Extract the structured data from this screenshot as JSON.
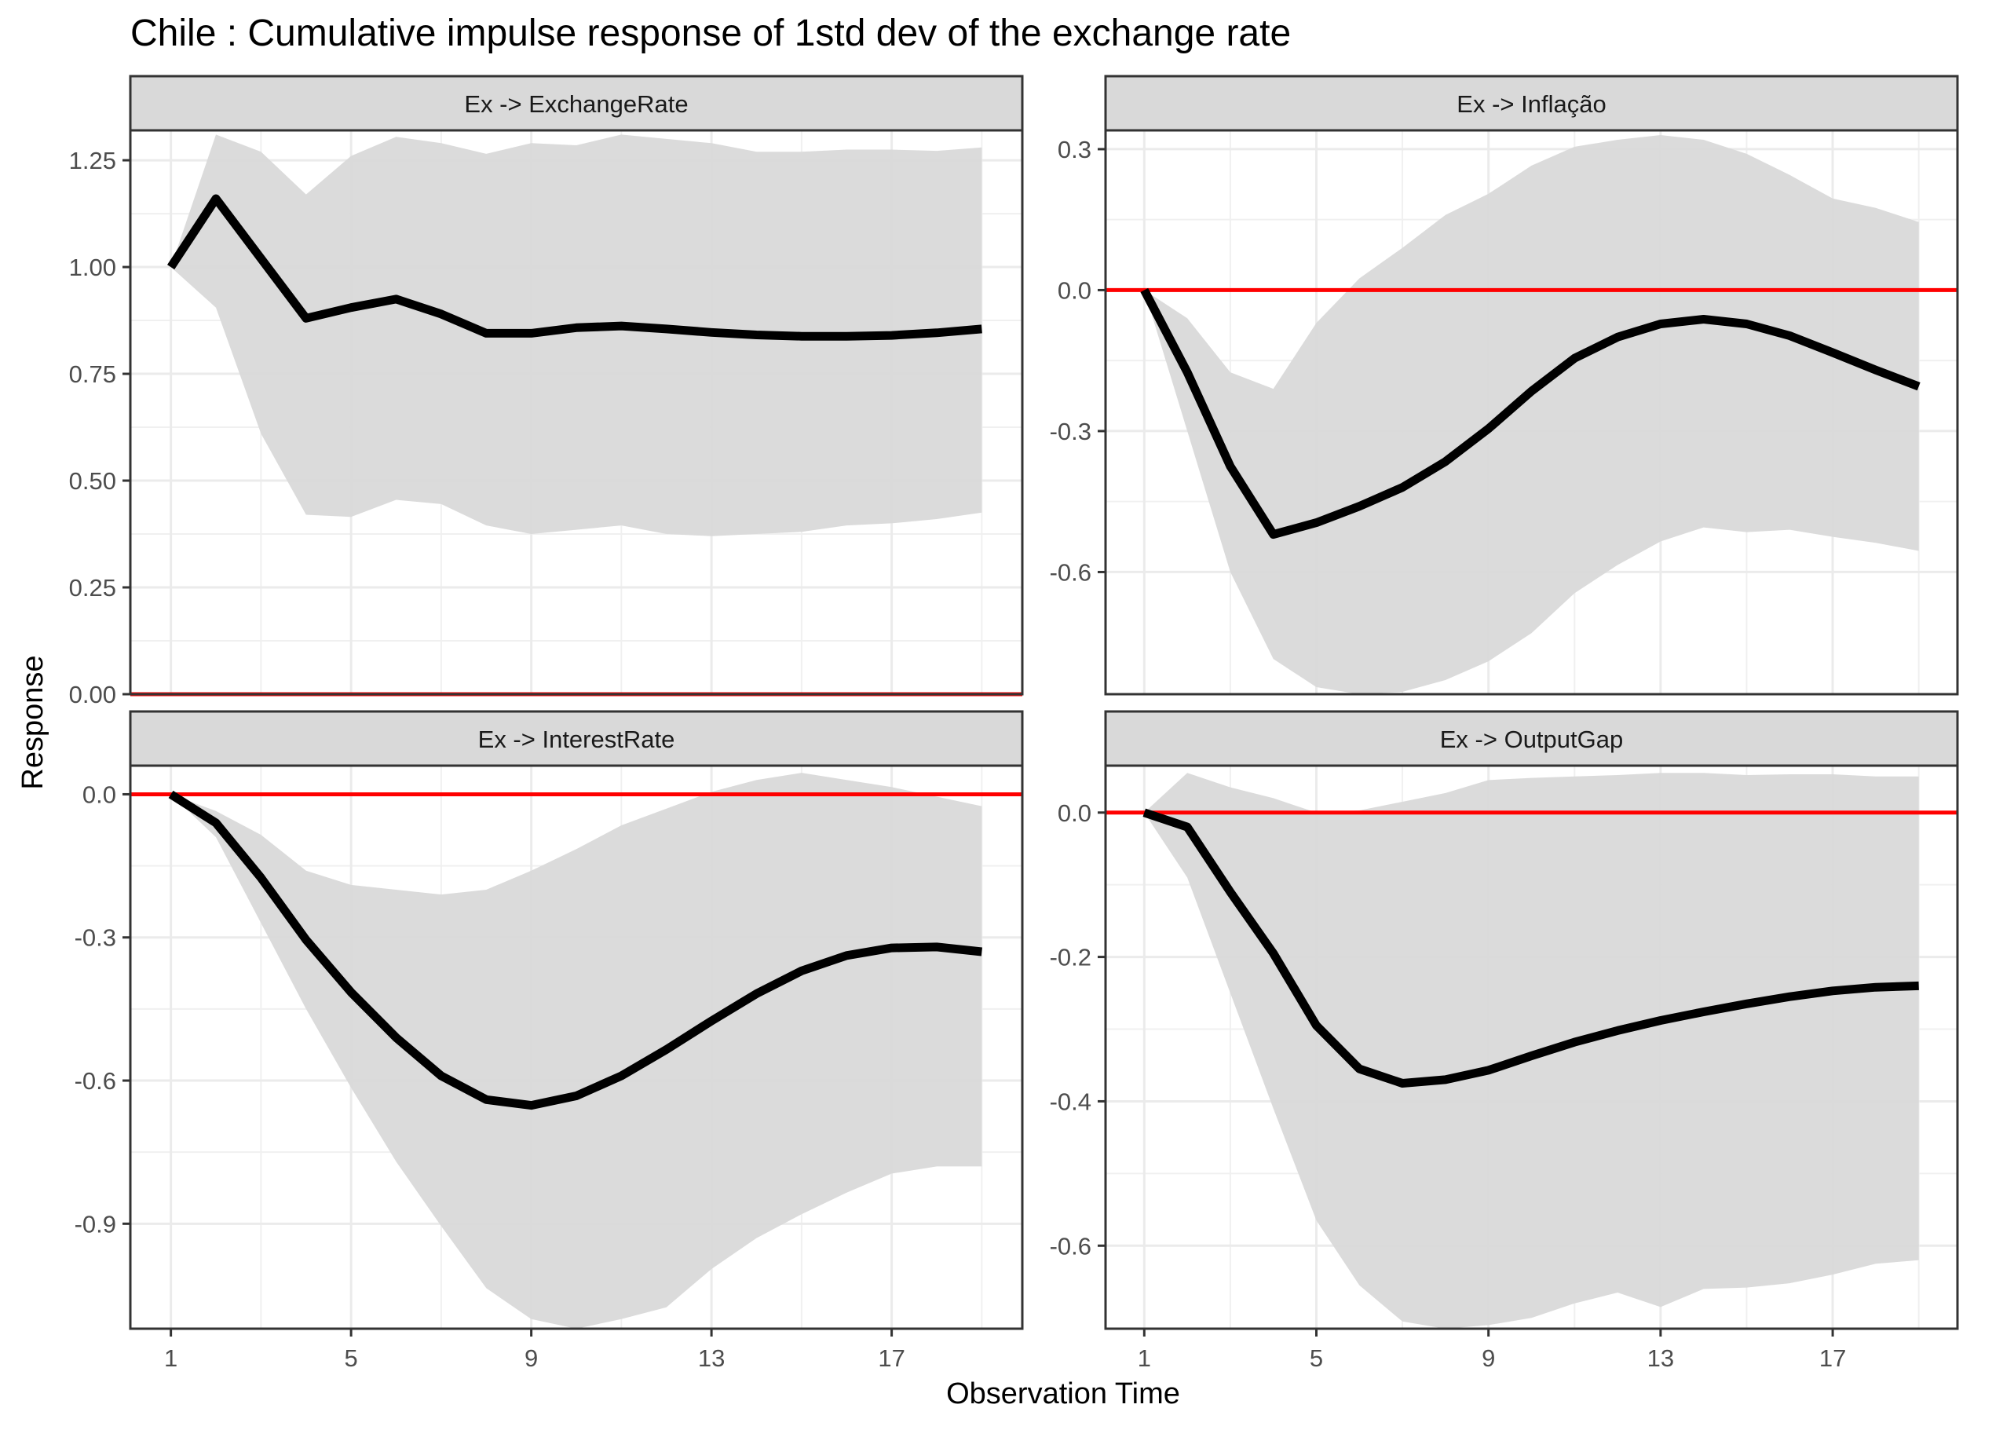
{
  "chart_data": {
    "type": "line",
    "title": "Chile : Cumulative impulse response of 1std dev of the exchange rate",
    "xlabel": "Observation Time",
    "ylabel": "Response",
    "x_ticks": [
      1,
      5,
      9,
      13,
      17
    ],
    "grid": true,
    "legend": "none",
    "colors": {
      "response": "#000000",
      "band": "#d9d9d9",
      "zero_line": "#ff0000",
      "strip_bg": "#d9d9d9",
      "frame": "#333333"
    },
    "panels": [
      {
        "label": "Ex -> ExchangeRate",
        "xlim": [
          0.1,
          19.9
        ],
        "ylim": [
          0,
          1.32
        ],
        "y_ticks": [
          0,
          0.25,
          0.5,
          0.75,
          1,
          1.25
        ],
        "y_tick_labels": [
          "0.00",
          "0.25",
          "0.50",
          "0.75",
          "1.00",
          "1.25"
        ],
        "x": [
          1,
          2,
          3,
          4,
          5,
          6,
          7,
          8,
          9,
          10,
          11,
          12,
          13,
          14,
          15,
          16,
          17,
          18,
          19
        ],
        "response": [
          1.0,
          1.16,
          1.02,
          0.88,
          0.905,
          0.925,
          0.89,
          0.845,
          0.845,
          0.858,
          0.862,
          0.855,
          0.847,
          0.841,
          0.838,
          0.838,
          0.84,
          0.846,
          0.855
        ],
        "upper": [
          1.0,
          1.31,
          1.27,
          1.17,
          1.26,
          1.305,
          1.29,
          1.265,
          1.29,
          1.285,
          1.31,
          1.3,
          1.29,
          1.27,
          1.27,
          1.275,
          1.275,
          1.272,
          1.28
        ],
        "lower": [
          1.0,
          0.905,
          0.61,
          0.42,
          0.415,
          0.455,
          0.445,
          0.395,
          0.375,
          0.385,
          0.395,
          0.375,
          0.37,
          0.375,
          0.38,
          0.395,
          0.4,
          0.41,
          0.425
        ]
      },
      {
        "label": "Ex -> Inflação",
        "xlim": [
          0.1,
          19.9
        ],
        "ylim": [
          -0.86,
          0.34
        ],
        "y_ticks": [
          -0.6,
          -0.3,
          0.0,
          0.3
        ],
        "y_tick_labels": [
          "-0.6",
          "-0.3",
          "0.0",
          "0.3"
        ],
        "x": [
          1,
          2,
          3,
          4,
          5,
          6,
          7,
          8,
          9,
          10,
          11,
          12,
          13,
          14,
          15,
          16,
          17,
          18,
          19
        ],
        "response": [
          0.0,
          -0.175,
          -0.375,
          -0.52,
          -0.495,
          -0.46,
          -0.42,
          -0.365,
          -0.295,
          -0.215,
          -0.145,
          -0.1,
          -0.072,
          -0.062,
          -0.072,
          -0.097,
          -0.133,
          -0.17,
          -0.205
        ],
        "upper": [
          0.0,
          -0.06,
          -0.175,
          -0.21,
          -0.07,
          0.025,
          0.09,
          0.16,
          0.205,
          0.265,
          0.305,
          0.32,
          0.33,
          0.32,
          0.29,
          0.245,
          0.195,
          0.175,
          0.145
        ],
        "lower": [
          0.0,
          -0.3,
          -0.6,
          -0.785,
          -0.845,
          -0.86,
          -0.855,
          -0.83,
          -0.79,
          -0.73,
          -0.645,
          -0.585,
          -0.535,
          -0.505,
          -0.515,
          -0.51,
          -0.525,
          -0.538,
          -0.555
        ]
      },
      {
        "label": "Ex -> InterestRate",
        "xlim": [
          0.1,
          19.9
        ],
        "ylim": [
          -1.12,
          0.06
        ],
        "y_ticks": [
          -0.9,
          -0.6,
          -0.3,
          0.0
        ],
        "y_tick_labels": [
          "-0.9",
          "-0.6",
          "-0.3",
          "0.0"
        ],
        "x": [
          1,
          2,
          3,
          4,
          5,
          6,
          7,
          8,
          9,
          10,
          11,
          12,
          13,
          14,
          15,
          16,
          17,
          18,
          19
        ],
        "response": [
          0.0,
          -0.06,
          -0.175,
          -0.305,
          -0.415,
          -0.51,
          -0.59,
          -0.64,
          -0.652,
          -0.632,
          -0.59,
          -0.535,
          -0.475,
          -0.418,
          -0.37,
          -0.338,
          -0.322,
          -0.32,
          -0.33
        ],
        "upper": [
          0.0,
          -0.035,
          -0.085,
          -0.16,
          -0.19,
          -0.2,
          -0.21,
          -0.2,
          -0.16,
          -0.115,
          -0.065,
          -0.03,
          0.005,
          0.03,
          0.045,
          0.03,
          0.015,
          -0.005,
          -0.025
        ],
        "lower": [
          0.0,
          -0.09,
          -0.27,
          -0.45,
          -0.615,
          -0.77,
          -0.905,
          -1.035,
          -1.1,
          -1.12,
          -1.1,
          -1.075,
          -0.995,
          -0.93,
          -0.88,
          -0.835,
          -0.795,
          -0.78,
          -0.78
        ]
      },
      {
        "label": "Ex -> OutputGap",
        "xlim": [
          0.1,
          19.9
        ],
        "ylim": [
          -0.715,
          0.065
        ],
        "y_ticks": [
          -0.6,
          -0.4,
          -0.2,
          0.0
        ],
        "y_tick_labels": [
          "-0.6",
          "-0.4",
          "-0.2",
          "0.0"
        ],
        "x": [
          1,
          2,
          3,
          4,
          5,
          6,
          7,
          8,
          9,
          10,
          11,
          12,
          13,
          14,
          15,
          16,
          17,
          18,
          19
        ],
        "response": [
          0.0,
          -0.02,
          -0.11,
          -0.195,
          -0.295,
          -0.355,
          -0.375,
          -0.37,
          -0.357,
          -0.337,
          -0.318,
          -0.302,
          -0.288,
          -0.276,
          -0.265,
          -0.255,
          -0.247,
          -0.242,
          -0.24
        ],
        "upper": [
          0.0,
          0.055,
          0.035,
          0.02,
          0.0,
          0.003,
          0.015,
          0.027,
          0.045,
          0.048,
          0.05,
          0.052,
          0.055,
          0.055,
          0.052,
          0.053,
          0.053,
          0.05,
          0.05
        ],
        "lower": [
          0.0,
          -0.09,
          -0.25,
          -0.41,
          -0.565,
          -0.655,
          -0.705,
          -0.715,
          -0.71,
          -0.7,
          -0.68,
          -0.665,
          -0.685,
          -0.66,
          -0.658,
          -0.652,
          -0.64,
          -0.625,
          -0.62
        ]
      }
    ]
  }
}
